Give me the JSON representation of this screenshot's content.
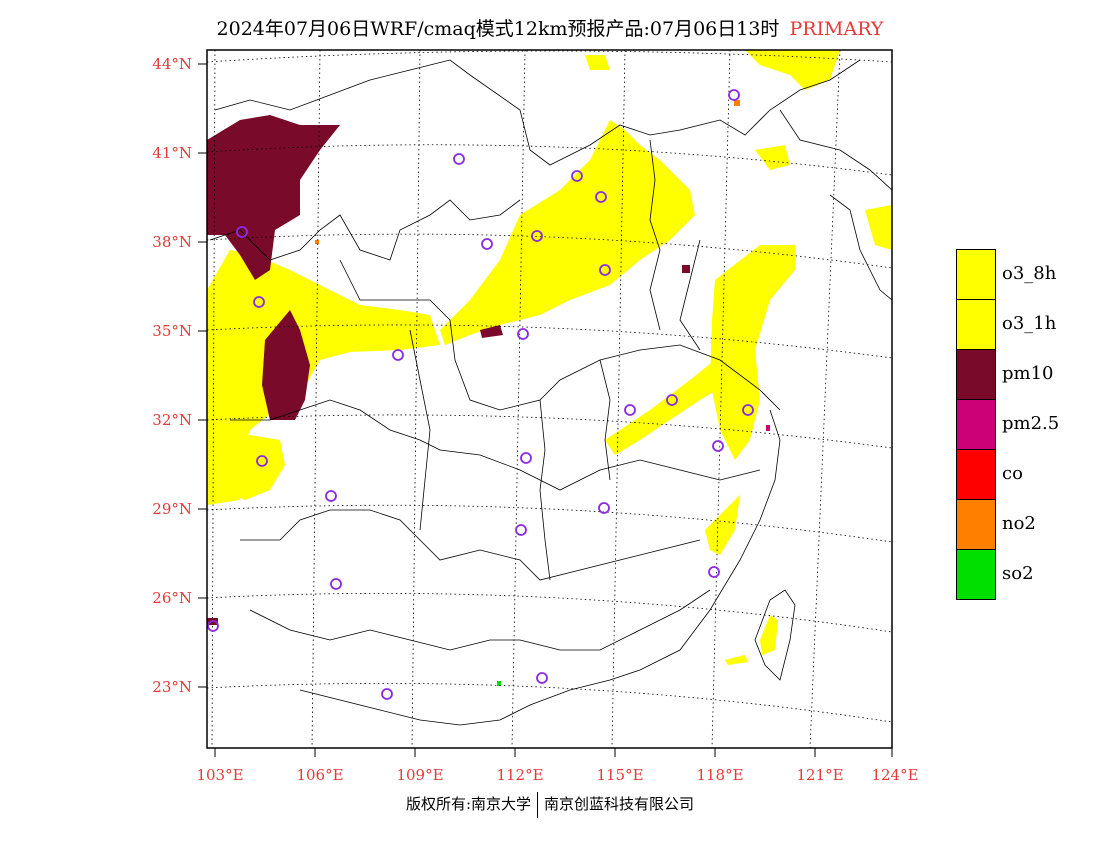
{
  "title": {
    "main": "2024年07月06日WRF/cmaq模式12km预报产品:07月06日13时",
    "tag": "PRIMARY"
  },
  "axes": {
    "lat_labels": [
      "44°N",
      "41°N",
      "38°N",
      "35°N",
      "32°N",
      "29°N",
      "26°N",
      "23°N"
    ],
    "lon_labels": [
      "103°E",
      "106°E",
      "109°E",
      "112°E",
      "115°E",
      "118°E",
      "121°E",
      "124°E"
    ]
  },
  "legend": [
    {
      "label": "o3_8h",
      "color": "#ffff00"
    },
    {
      "label": "o3_1h",
      "color": "#ffff00"
    },
    {
      "label": "pm10",
      "color": "#7a0a2a"
    },
    {
      "label": "pm2.5",
      "color": "#cc0077"
    },
    {
      "label": "co",
      "color": "#ff0000"
    },
    {
      "label": "no2",
      "color": "#ff8000"
    },
    {
      "label": "so2",
      "color": "#00e000"
    }
  ],
  "footer": {
    "left": "版权所有:南京大学",
    "right": "南京创蓝科技有限公司"
  },
  "colors": {
    "axis_label": "#e53a3a",
    "station_marker": "#8a2be2"
  }
}
